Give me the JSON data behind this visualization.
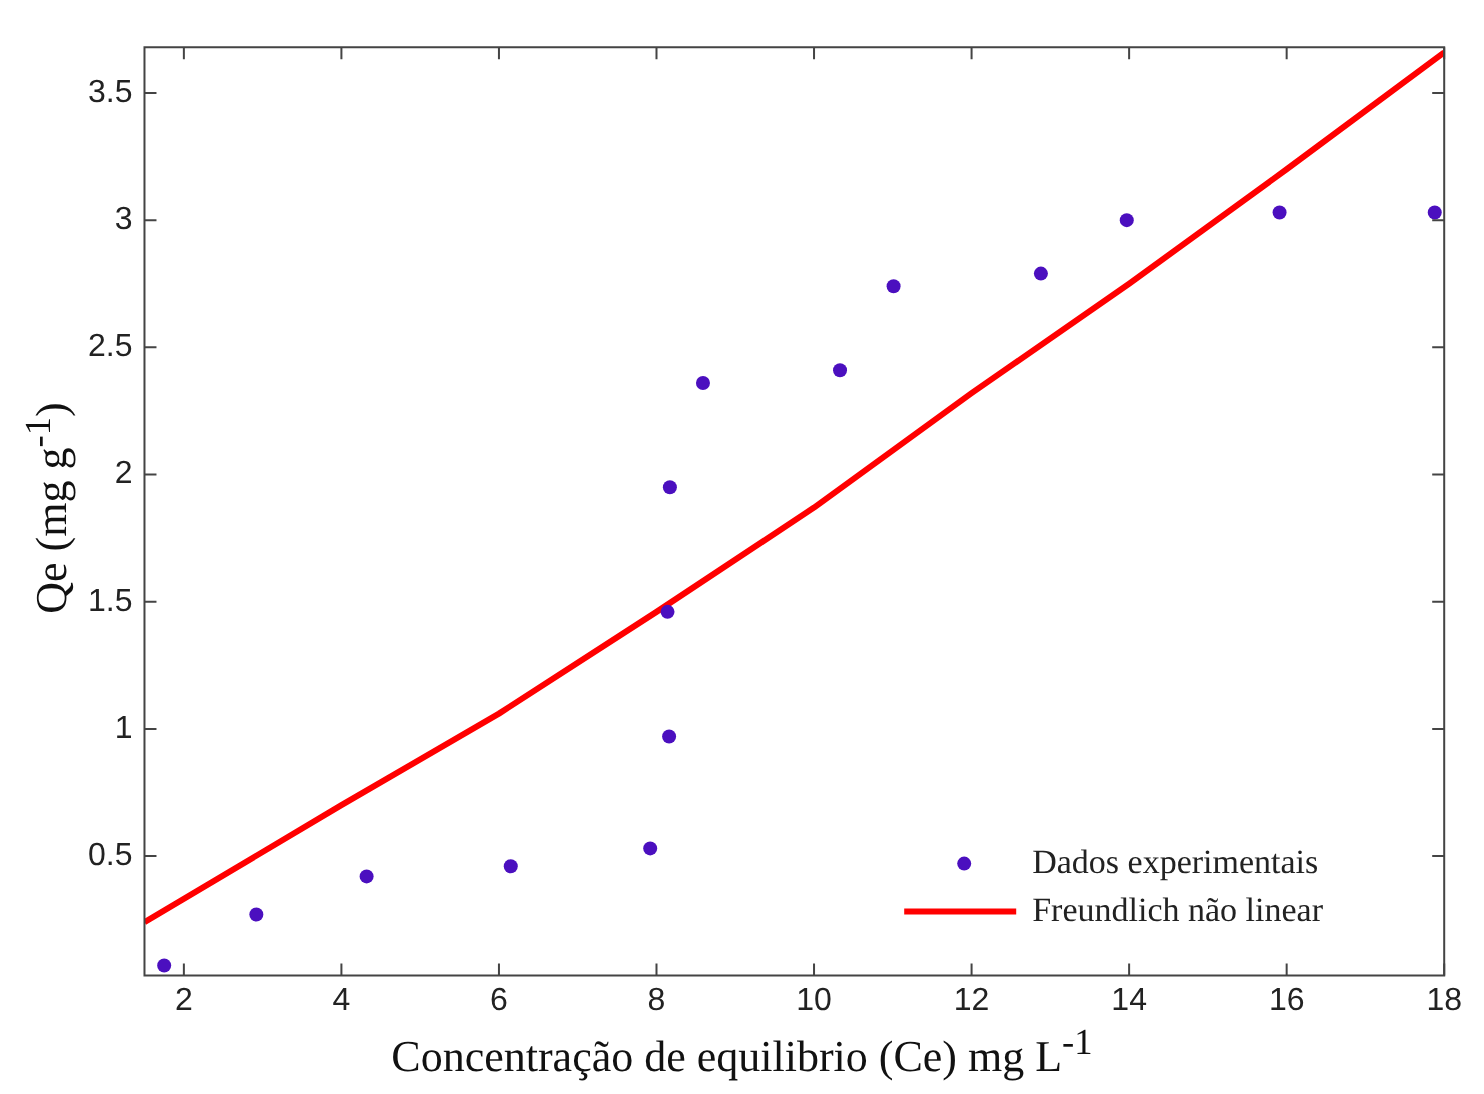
{
  "chart_data": {
    "type": "scatter",
    "xlabel": "Concentração de equilibrio (Ce) mg L$^{-1}$",
    "ylabel": "Qe (mg g$^{-1}$)",
    "xlim": [
      1.5,
      18
    ],
    "xticks": [
      2,
      4,
      6,
      8,
      10,
      12,
      14,
      16,
      18
    ],
    "ylim": [
      0.03,
      3.68
    ],
    "yticks": [
      0.5,
      1,
      1.5,
      2,
      2.5,
      3,
      3.5
    ],
    "grid": false,
    "legend": "bottom right",
    "series": [
      {
        "name": "Dados experimentais",
        "color": "#4b0fbf",
        "marker": "circle",
        "x": [
          1.75,
          2.92,
          4.32,
          6.15,
          7.92,
          8.16,
          8.14,
          8.17,
          8.59,
          10.33,
          11.01,
          12.88,
          13.97,
          15.91,
          17.88
        ],
        "values": [
          0.07,
          0.27,
          0.42,
          0.46,
          0.53,
          0.97,
          1.46,
          1.95,
          2.36,
          2.41,
          2.74,
          2.79,
          3.0,
          3.03,
          3.03
        ]
      },
      {
        "name": "Freundlich não linear",
        "type": "line",
        "color": "#ff0000",
        "marker": "none",
        "line_style": "solid",
        "x": [
          1.5,
          4,
          6,
          8,
          10,
          12,
          14,
          16,
          18
        ],
        "values": [
          0.24,
          0.7,
          1.06,
          1.46,
          1.87,
          2.32,
          2.75,
          3.2,
          3.66
        ]
      }
    ]
  }
}
